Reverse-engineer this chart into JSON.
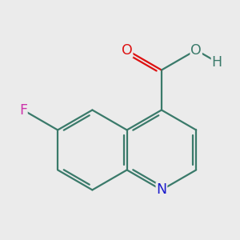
{
  "background_color": "#ebebeb",
  "bond_color": "#3a7a6a",
  "bond_width": 1.6,
  "atom_colors": {
    "N": "#1a1acc",
    "O_carbonyl": "#dd1111",
    "O_hydroxyl": "#3a7a6a",
    "F": "#cc33aa",
    "H": "#3a7a6a"
  },
  "font_size": 12.5
}
